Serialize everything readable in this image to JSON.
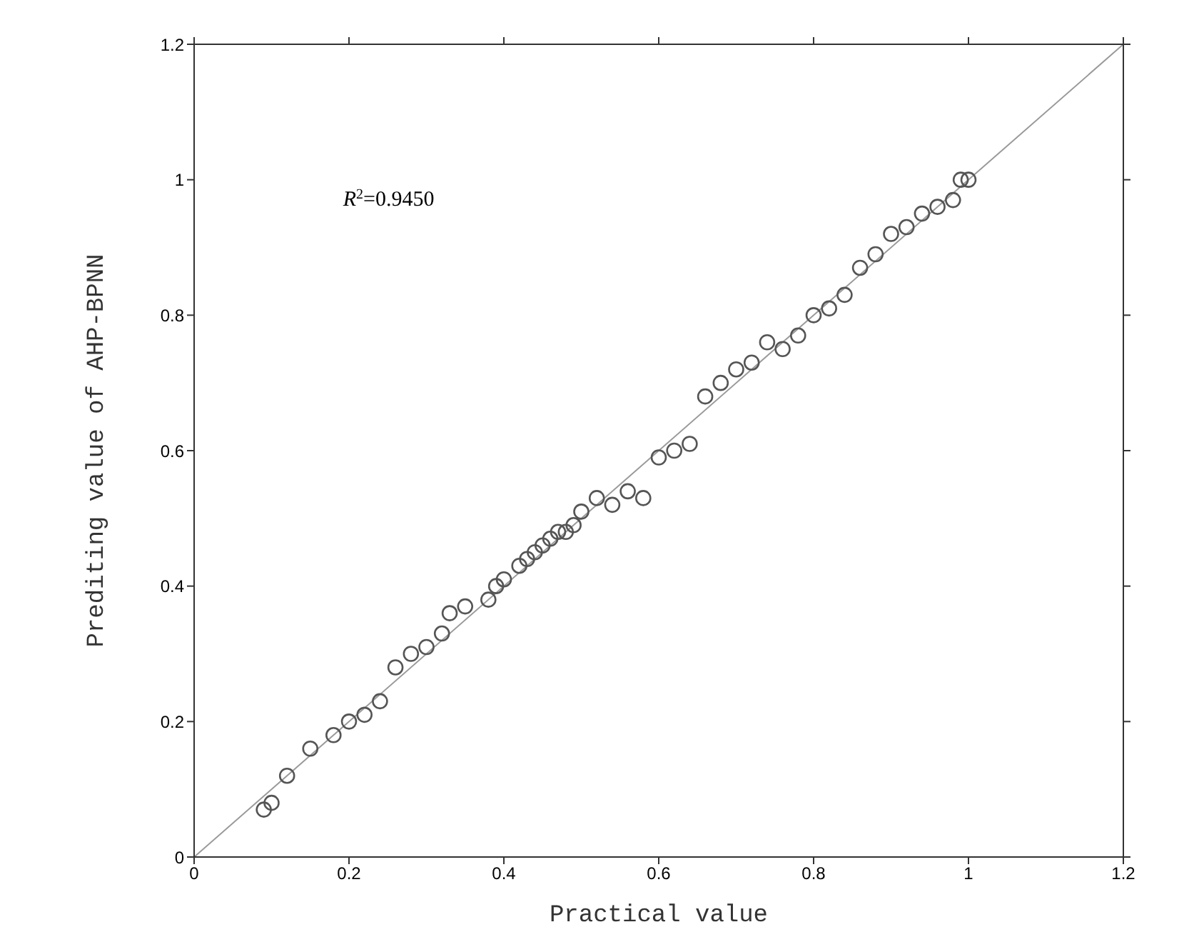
{
  "chart_data": {
    "type": "scatter",
    "xlabel": "Practical value",
    "ylabel": "Prediting value of AHP-BPNN",
    "annotations": [
      "R$^{2}$=0.9450"
    ],
    "xlim": [
      0,
      1.2
    ],
    "ylim": [
      0,
      1.2
    ],
    "xticks": [
      0,
      0.2,
      0.4,
      0.6,
      0.8,
      1,
      1.2
    ],
    "yticks": [
      0,
      0.2,
      0.4,
      0.6,
      0.8,
      1,
      1.2
    ],
    "series": [
      {
        "marker": "circle",
        "color": "#555555",
        "x": [
          0.09,
          0.1,
          0.12,
          0.15,
          0.18,
          0.2,
          0.22,
          0.24,
          0.26,
          0.28,
          0.3,
          0.32,
          0.33,
          0.35,
          0.38,
          0.39,
          0.4,
          0.42,
          0.43,
          0.44,
          0.45,
          0.46,
          0.47,
          0.48,
          0.49,
          0.5,
          0.52,
          0.54,
          0.56,
          0.58,
          0.6,
          0.62,
          0.64,
          0.66,
          0.68,
          0.7,
          0.72,
          0.74,
          0.76,
          0.78,
          0.8,
          0.82,
          0.84,
          0.86,
          0.88,
          0.9,
          0.92,
          0.94,
          0.96,
          0.98,
          0.99,
          1.0
        ],
        "values": [
          0.07,
          0.08,
          0.12,
          0.16,
          0.18,
          0.2,
          0.21,
          0.23,
          0.28,
          0.3,
          0.31,
          0.33,
          0.36,
          0.37,
          0.38,
          0.4,
          0.41,
          0.43,
          0.44,
          0.45,
          0.46,
          0.47,
          0.48,
          0.48,
          0.49,
          0.51,
          0.53,
          0.52,
          0.54,
          0.53,
          0.59,
          0.6,
          0.61,
          0.68,
          0.7,
          0.72,
          0.73,
          0.76,
          0.75,
          0.77,
          0.8,
          0.81,
          0.83,
          0.87,
          0.89,
          0.92,
          0.93,
          0.95,
          0.96,
          0.97,
          1.0,
          1.0
        ]
      },
      {
        "type": "line",
        "color": "#999999",
        "x": [
          0,
          1.2
        ],
        "values": [
          0,
          1.2
        ]
      }
    ]
  }
}
